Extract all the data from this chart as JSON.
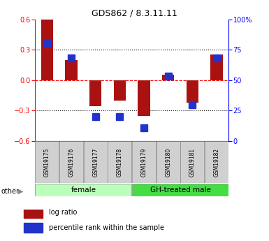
{
  "title": "GDS862 / 8.3.11.11",
  "samples": [
    "GSM19175",
    "GSM19176",
    "GSM19177",
    "GSM19178",
    "GSM19179",
    "GSM19180",
    "GSM19181",
    "GSM19182"
  ],
  "log_ratio": [
    0.6,
    0.2,
    -0.26,
    -0.2,
    -0.35,
    0.05,
    -0.22,
    0.25
  ],
  "percentile_rank": [
    80,
    68,
    20,
    20,
    11,
    53,
    30,
    68
  ],
  "groups": [
    {
      "label": "female",
      "start": 0,
      "end": 4,
      "color": "#bbffbb"
    },
    {
      "label": "GH-treated male",
      "start": 4,
      "end": 8,
      "color": "#44dd44"
    }
  ],
  "ylim_left": [
    -0.6,
    0.6
  ],
  "ylim_right": [
    0,
    100
  ],
  "yticks_left": [
    -0.6,
    -0.3,
    0.0,
    0.3,
    0.6
  ],
  "yticks_right": [
    0,
    25,
    50,
    75,
    100
  ],
  "ytick_labels_right": [
    "0",
    "25",
    "50",
    "75",
    "100%"
  ],
  "hlines_dotted": [
    0.3,
    -0.3
  ],
  "hline_dashed": 0.0,
  "bar_color_red": "#aa1111",
  "bar_color_blue": "#2233cc",
  "bar_width": 0.5,
  "blue_marker_size": 7,
  "other_label": "other",
  "legend_items": [
    {
      "color": "#aa1111",
      "label": "log ratio"
    },
    {
      "color": "#2233cc",
      "label": "percentile rank within the sample"
    }
  ],
  "background_color": "#ffffff"
}
